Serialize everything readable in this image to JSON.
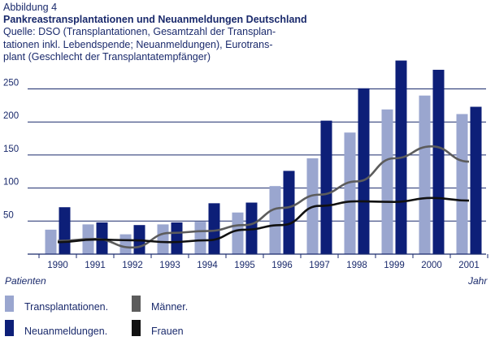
{
  "figure_label": "Abbildung 4",
  "chart_data": {
    "type": "bar",
    "title": "Pankreastransplantationen und Neuanmeldungen Deutschland",
    "source_lines": [
      "Quelle: DSO (Transplantationen, Gesamtzahl der Transplan-",
      "tationen inkl. Lebendspende;  Neuanmeldungen), Eurotrans-",
      "plant (Geschlecht der Transplantatempfänger)"
    ],
    "ylabel": "Patienten",
    "xlabel": "Jahr",
    "ylim": [
      0,
      290
    ],
    "yticks": [
      50,
      100,
      150,
      200,
      250
    ],
    "categories": [
      "1990",
      "1991",
      "1992",
      "1993",
      "1994",
      "1995",
      "1996",
      "1997",
      "1998",
      "1999",
      "2000",
      "2001"
    ],
    "series": [
      {
        "name": "Transplantationen.",
        "kind": "bar",
        "color": "#9aa6cf",
        "values": [
          37,
          45,
          30,
          45,
          49,
          63,
          103,
          145,
          184,
          219,
          240,
          212
        ]
      },
      {
        "name": "Neuanmeldungen.",
        "kind": "bar",
        "color": "#0d1f78",
        "values": [
          71,
          48,
          44,
          48,
          77,
          78,
          126,
          202,
          251,
          293,
          279,
          223
        ]
      },
      {
        "name": "Männer.",
        "kind": "line",
        "color": "#5c5c5c",
        "values": [
          20,
          23,
          10,
          32,
          35,
          44,
          70,
          90,
          110,
          145,
          163,
          140
        ]
      },
      {
        "name": "Frauen",
        "kind": "line",
        "color": "#111111",
        "values": [
          18,
          22,
          21,
          18,
          21,
          37,
          44,
          73,
          80,
          79,
          85,
          81
        ]
      }
    ],
    "grid": true
  }
}
